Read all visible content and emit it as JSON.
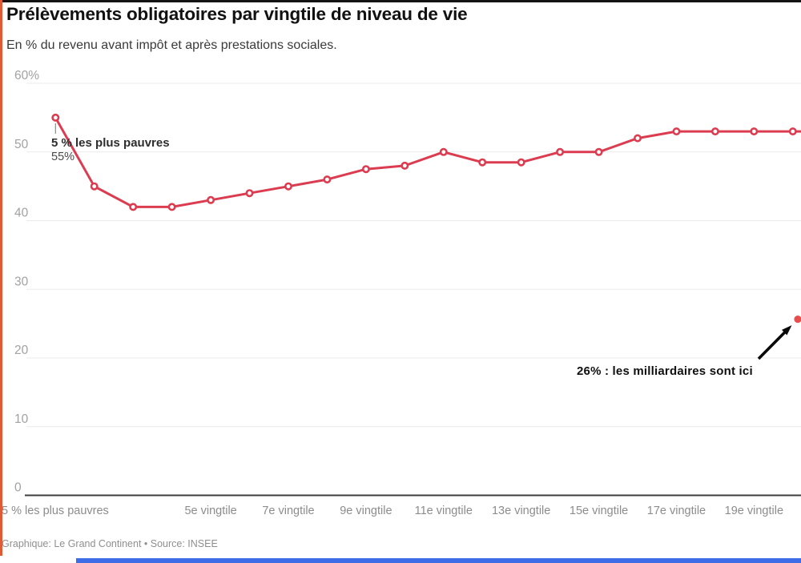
{
  "header": {
    "title": "Prélèvements obligatoires par vingtile de niveau de vie",
    "subtitle": "En % du revenu avant impôt et après prestations sociales."
  },
  "footer": {
    "credit": "Graphique: Le Grand Continent • Source: INSEE"
  },
  "colors": {
    "line": "#dc3c50",
    "marker_fill": "#ffffff",
    "outlier_dot": "#e4504e",
    "grid": "#ebebeb",
    "axis": "#3d3d3d",
    "y_tick_text": "#a2a2a2",
    "x_tick_text": "#8c8c8c",
    "annotation_bold": "#2d2d2d",
    "annotation_value": "#4a4a4a",
    "outlier_text": "#101010",
    "arrow": "#0a0a0a",
    "leader": "#8a8a8a",
    "top_border": "#141414",
    "left_border": "#e05a33",
    "bottom_bar": "#3f6de8"
  },
  "chart_data": {
    "type": "line",
    "title": "Prélèvements obligatoires par vingtile de niveau de vie",
    "subtitle": "En % du revenu avant impôt et après prestations sociales.",
    "xlabel": "vingtile de niveau de vie",
    "ylabel": "% du revenu avant impôt et après prestations sociales",
    "grid": "horizontal",
    "ylim": [
      0,
      60
    ],
    "x": [
      1,
      2,
      3,
      4,
      5,
      6,
      7,
      8,
      9,
      10,
      11,
      12,
      13,
      14,
      15,
      16,
      17,
      18,
      19,
      20
    ],
    "series": [
      {
        "name": "Prélèvements obligatoires",
        "values": [
          55,
          45,
          42,
          42,
          43,
          44,
          45,
          46,
          47.5,
          48,
          50,
          48.5,
          48.5,
          50,
          50,
          52,
          53,
          53,
          53,
          53
        ]
      }
    ],
    "y_ticks": [
      {
        "label": "60%",
        "value": 60
      },
      {
        "label": "50",
        "value": 50
      },
      {
        "label": "40",
        "value": 40
      },
      {
        "label": "30",
        "value": 30
      },
      {
        "label": "20",
        "value": 20
      },
      {
        "label": "10",
        "value": 10
      },
      {
        "label": "0",
        "value": 0
      }
    ],
    "x_ticks": [
      {
        "label": "5 % les plus pauvres",
        "value": 1,
        "align": "start"
      },
      {
        "label": "5e vingtile",
        "value": 5
      },
      {
        "label": "7e vingtile",
        "value": 7
      },
      {
        "label": "9e vingtile",
        "value": 9
      },
      {
        "label": "11e vingtile",
        "value": 11
      },
      {
        "label": "13e vingtile",
        "value": 13
      },
      {
        "label": "15e vingtile",
        "value": 15
      },
      {
        "label": "17e vingtile",
        "value": 17
      },
      {
        "label": "19e vingtile",
        "value": 19
      }
    ],
    "annotations": {
      "first_point": {
        "point_index": 1,
        "bold_label": "5 % les plus pauvres",
        "value_label": "55%"
      },
      "outlier": {
        "label": "26%  : les milliardaires sont ici",
        "value": 26
      }
    }
  }
}
